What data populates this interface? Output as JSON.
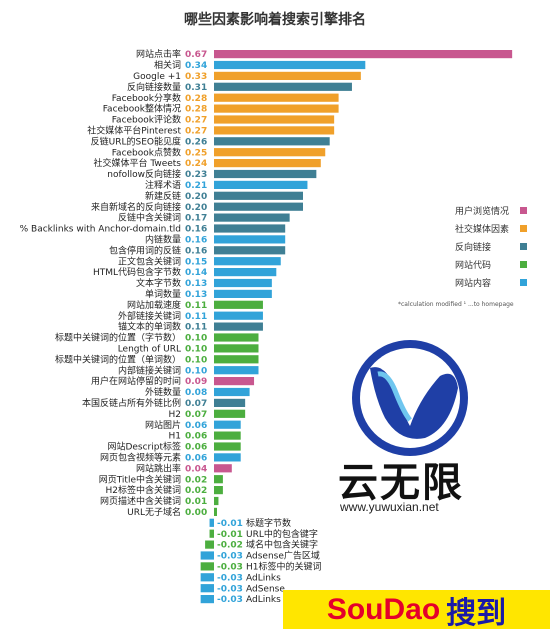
{
  "chart_data": {
    "type": "bar",
    "orientation": "horizontal",
    "title": "哪些因素影响着搜索引擎排名",
    "note": "*calculation modified   ¹ ...to homepage",
    "legend_position": "right",
    "legend": [
      {
        "name": "用户浏览情况",
        "color": "#c8578f"
      },
      {
        "name": "社交媒体因素",
        "color": "#f0a02a"
      },
      {
        "name": "反向链接",
        "color": "#3f7f94"
      },
      {
        "name": "网站代码",
        "color": "#4cae3f"
      },
      {
        "name": "网站内容",
        "color": "#31a3d9"
      }
    ],
    "categories": [
      {
        "label": "网站点击率",
        "value": 0.67,
        "group": 0
      },
      {
        "label": "相关词",
        "value": 0.34,
        "group": 4
      },
      {
        "label": "Google +1",
        "value": 0.33,
        "group": 1
      },
      {
        "label": "反向链接数量",
        "value": 0.31,
        "group": 2
      },
      {
        "label": "Facebook分享数",
        "value": 0.28,
        "group": 1
      },
      {
        "label": "Facebook整体情况",
        "value": 0.28,
        "group": 1
      },
      {
        "label": "Facebook评论数",
        "value": 0.27,
        "group": 1
      },
      {
        "label": "社交媒体平台Pinterest",
        "value": 0.27,
        "group": 1
      },
      {
        "label": "反链URL的SEO能见度",
        "value": 0.26,
        "group": 2
      },
      {
        "label": "Facebook点赞数",
        "value": 0.25,
        "group": 1
      },
      {
        "label": "社交媒体平台 Tweets",
        "value": 0.24,
        "group": 1
      },
      {
        "label": "nofollow反向链接",
        "value": 0.23,
        "group": 2
      },
      {
        "label": "注释术语",
        "value": 0.21,
        "group": 4
      },
      {
        "label": "新建反链",
        "value": 0.2,
        "group": 2
      },
      {
        "label": "来自新域名的反向链接",
        "value": 0.2,
        "group": 2
      },
      {
        "label": "反链中含关键词",
        "value": 0.17,
        "group": 2
      },
      {
        "label": "% Backlinks with Anchor-domain.tld",
        "value": 0.16,
        "group": 2
      },
      {
        "label": "内链数量",
        "value": 0.16,
        "group": 4
      },
      {
        "label": "包含停用词的反链",
        "value": 0.16,
        "group": 2
      },
      {
        "label": "正文包含关键词",
        "value": 0.15,
        "group": 4
      },
      {
        "label": "HTML代码包含字节数",
        "value": 0.14,
        "group": 4
      },
      {
        "label": "文本字节数",
        "value": 0.13,
        "group": 4
      },
      {
        "label": "单词数量",
        "value": 0.13,
        "group": 4
      },
      {
        "label": "网站加载速度",
        "value": 0.11,
        "group": 3
      },
      {
        "label": "外部链接关键词",
        "value": 0.11,
        "group": 4
      },
      {
        "label": "锚文本的单词数",
        "value": 0.11,
        "group": 2
      },
      {
        "label": "标题中关键词的位置（字节数）",
        "value": 0.1,
        "group": 3
      },
      {
        "label": "Length of URL",
        "value": 0.1,
        "group": 3
      },
      {
        "label": "标题中关键词的位置（单词数）",
        "value": 0.1,
        "group": 3
      },
      {
        "label": "内部链接关键词",
        "value": 0.1,
        "group": 4
      },
      {
        "label": "用户在网站停留的时间",
        "value": 0.09,
        "group": 0
      },
      {
        "label": "外链数量",
        "value": 0.08,
        "group": 4
      },
      {
        "label": "本国反链占所有外链比例",
        "value": 0.07,
        "group": 2
      },
      {
        "label": "H2",
        "value": 0.07,
        "group": 3
      },
      {
        "label": "网站图片",
        "value": 0.06,
        "group": 4
      },
      {
        "label": "H1",
        "value": 0.06,
        "group": 3
      },
      {
        "label": "网站Descript标签",
        "value": 0.06,
        "group": 3
      },
      {
        "label": "网页包含视频等元素",
        "value": 0.06,
        "group": 4
      },
      {
        "label": "网站跳出率",
        "value": 0.04,
        "group": 0
      },
      {
        "label": "网页Title中含关键词",
        "value": 0.02,
        "group": 3
      },
      {
        "label": "H2标签中含关键词",
        "value": 0.02,
        "group": 3
      },
      {
        "label": "网页描述中含关键词",
        "value": 0.01,
        "group": 3
      },
      {
        "label": "URL无子域名",
        "value": 0.0,
        "group": 3
      },
      {
        "label": "标题字节数",
        "value": -0.01,
        "group": 4
      },
      {
        "label": "URL中的包含键字",
        "value": -0.01,
        "group": 3
      },
      {
        "label": "域名中包含关键字",
        "value": -0.02,
        "group": 3
      },
      {
        "label": "Adsense广告区域",
        "value": -0.03,
        "group": 4
      },
      {
        "label": "H1标签中的关键词",
        "value": -0.03,
        "group": 3
      },
      {
        "label": "AdLinks",
        "value": -0.03,
        "group": 4
      },
      {
        "label": "AdSense",
        "value": -0.03,
        "group": 4
      },
      {
        "label": "AdLinks",
        "value": -0.03,
        "group": 4
      }
    ]
  },
  "watermark": {
    "brand_cn": "云无限",
    "brand_url": "www.yuwuxian.net",
    "badge_a": "SouDao",
    "badge_b": "搜到"
  }
}
